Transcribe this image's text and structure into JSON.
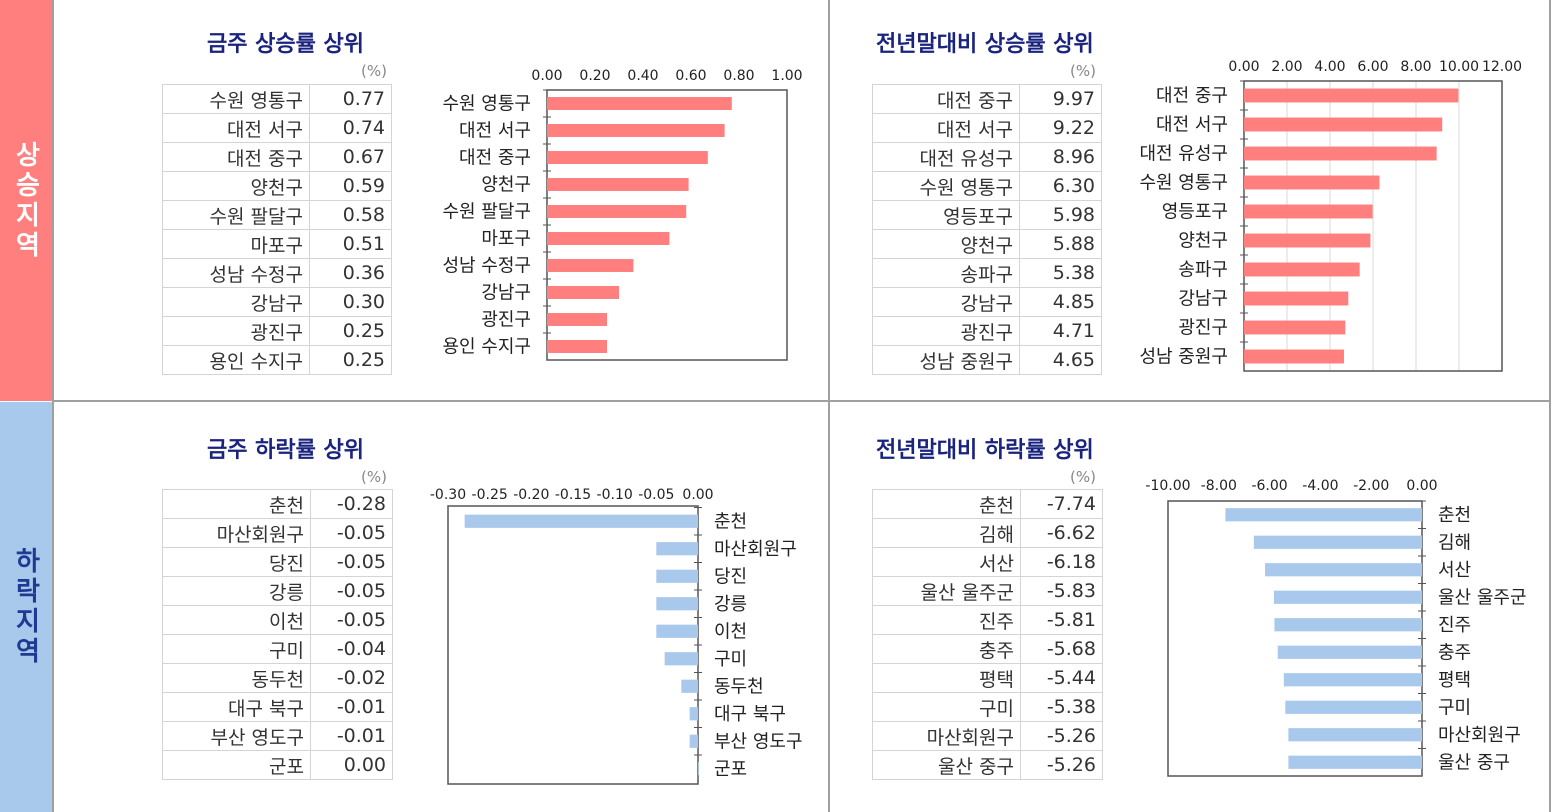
{
  "sidebar": {
    "rise_label": "상승지역",
    "fall_label": "하락지역"
  },
  "colors": {
    "rise": "#ff7f7f",
    "fall": "#a8c8ec",
    "title": "#1a237e"
  },
  "panels": {
    "rise_week": {
      "title": "금주 상승률 상위",
      "unit": "(%)",
      "rows": [
        {
          "name": "수원 영통구",
          "value": "0.77"
        },
        {
          "name": "대전 서구",
          "value": "0.74"
        },
        {
          "name": "대전 중구",
          "value": "0.67"
        },
        {
          "name": "양천구",
          "value": "0.59"
        },
        {
          "name": "수원 팔달구",
          "value": "0.58"
        },
        {
          "name": "마포구",
          "value": "0.51"
        },
        {
          "name": "성남 수정구",
          "value": "0.36"
        },
        {
          "name": "강남구",
          "value": "0.30"
        },
        {
          "name": "광진구",
          "value": "0.25"
        },
        {
          "name": "용인 수지구",
          "value": "0.25"
        }
      ]
    },
    "rise_year": {
      "title": "전년말대비 상승률 상위",
      "unit": "(%)",
      "rows": [
        {
          "name": "대전 중구",
          "value": "9.97"
        },
        {
          "name": "대전 서구",
          "value": "9.22"
        },
        {
          "name": "대전 유성구",
          "value": "8.96"
        },
        {
          "name": "수원 영통구",
          "value": "6.30"
        },
        {
          "name": "영등포구",
          "value": "5.98"
        },
        {
          "name": "양천구",
          "value": "5.88"
        },
        {
          "name": "송파구",
          "value": "5.38"
        },
        {
          "name": "강남구",
          "value": "4.85"
        },
        {
          "name": "광진구",
          "value": "4.71"
        },
        {
          "name": "성남 중원구",
          "value": "4.65"
        }
      ]
    },
    "fall_week": {
      "title": "금주 하락률 상위",
      "unit": "(%)",
      "rows": [
        {
          "name": "춘천",
          "value": "-0.28"
        },
        {
          "name": "마산회원구",
          "value": "-0.05"
        },
        {
          "name": "당진",
          "value": "-0.05"
        },
        {
          "name": "강릉",
          "value": "-0.05"
        },
        {
          "name": "이천",
          "value": "-0.05"
        },
        {
          "name": "구미",
          "value": "-0.04"
        },
        {
          "name": "동두천",
          "value": "-0.02"
        },
        {
          "name": "대구 북구",
          "value": "-0.01"
        },
        {
          "name": "부산 영도구",
          "value": "-0.01"
        },
        {
          "name": "군포",
          "value": "0.00"
        }
      ]
    },
    "fall_year": {
      "title": "전년말대비 하락률 상위",
      "unit": "(%)",
      "rows": [
        {
          "name": "춘천",
          "value": "-7.74"
        },
        {
          "name": "김해",
          "value": "-6.62"
        },
        {
          "name": "서산",
          "value": "-6.18"
        },
        {
          "name": "울산 울주군",
          "value": "-5.83"
        },
        {
          "name": "진주",
          "value": "-5.81"
        },
        {
          "name": "충주",
          "value": "-5.68"
        },
        {
          "name": "평택",
          "value": "-5.44"
        },
        {
          "name": "구미",
          "value": "-5.38"
        },
        {
          "name": "마산회원구",
          "value": "-5.26"
        },
        {
          "name": "울산 중구",
          "value": "-5.26"
        }
      ]
    }
  },
  "chart_data": [
    {
      "id": "rise_week",
      "type": "bar",
      "orientation": "horizontal",
      "categories": [
        "수원 영통구",
        "대전 서구",
        "대전 중구",
        "양천구",
        "수원 팔달구",
        "마포구",
        "성남 수정구",
        "강남구",
        "광진구",
        "용인 수지구"
      ],
      "values": [
        0.77,
        0.74,
        0.67,
        0.59,
        0.58,
        0.51,
        0.36,
        0.3,
        0.25,
        0.25
      ],
      "xlim": [
        0,
        1
      ],
      "ticks": [
        0,
        0.2,
        0.4,
        0.6,
        0.8,
        1.0
      ],
      "tick_labels": [
        "0.00",
        "0.20",
        "0.40",
        "0.60",
        "0.80",
        "1.00"
      ],
      "axis_position": "top",
      "category_labels": "left",
      "grid": false,
      "color": "#ff7f7f"
    },
    {
      "id": "rise_year",
      "type": "bar",
      "orientation": "horizontal",
      "categories": [
        "대전 중구",
        "대전 서구",
        "대전 유성구",
        "수원 영통구",
        "영등포구",
        "양천구",
        "송파구",
        "강남구",
        "광진구",
        "성남 중원구"
      ],
      "values": [
        9.97,
        9.22,
        8.96,
        6.3,
        5.98,
        5.88,
        5.38,
        4.85,
        4.71,
        4.65
      ],
      "xlim": [
        0,
        12
      ],
      "ticks": [
        0,
        2,
        4,
        6,
        8,
        10,
        12
      ],
      "tick_labels": [
        "0.00",
        "2.00",
        "4.00",
        "6.00",
        "8.00",
        "10.00",
        "12.00"
      ],
      "axis_position": "top",
      "category_labels": "left",
      "grid": true,
      "color": "#ff7f7f"
    },
    {
      "id": "fall_week",
      "type": "bar",
      "orientation": "horizontal",
      "categories": [
        "춘천",
        "마산회원구",
        "당진",
        "강릉",
        "이천",
        "구미",
        "동두천",
        "대구 북구",
        "부산 영도구",
        "군포"
      ],
      "values": [
        -0.28,
        -0.05,
        -0.05,
        -0.05,
        -0.05,
        -0.04,
        -0.02,
        -0.01,
        -0.01,
        0.0
      ],
      "xlim": [
        -0.3,
        0
      ],
      "ticks": [
        -0.3,
        -0.25,
        -0.2,
        -0.15,
        -0.1,
        -0.05,
        0
      ],
      "tick_labels": [
        "-0.30",
        "-0.25",
        "-0.20",
        "-0.15",
        "-0.10",
        "-0.05",
        "0.00"
      ],
      "axis_position": "top",
      "category_labels": "right",
      "grid": false,
      "color": "#a8c8ec"
    },
    {
      "id": "fall_year",
      "type": "bar",
      "orientation": "horizontal",
      "categories": [
        "춘천",
        "김해",
        "서산",
        "울산 울주군",
        "진주",
        "충주",
        "평택",
        "구미",
        "마산회원구",
        "울산 중구"
      ],
      "values": [
        -7.74,
        -6.62,
        -6.18,
        -5.83,
        -5.81,
        -5.68,
        -5.44,
        -5.38,
        -5.26,
        -5.26
      ],
      "xlim": [
        -10,
        0
      ],
      "ticks": [
        -10,
        -8,
        -6,
        -4,
        -2,
        0
      ],
      "tick_labels": [
        "-10.00",
        "-8.00",
        "-6.00",
        "-4.00",
        "-2.00",
        "0.00"
      ],
      "axis_position": "top",
      "category_labels": "right",
      "grid": false,
      "color": "#a8c8ec"
    }
  ]
}
